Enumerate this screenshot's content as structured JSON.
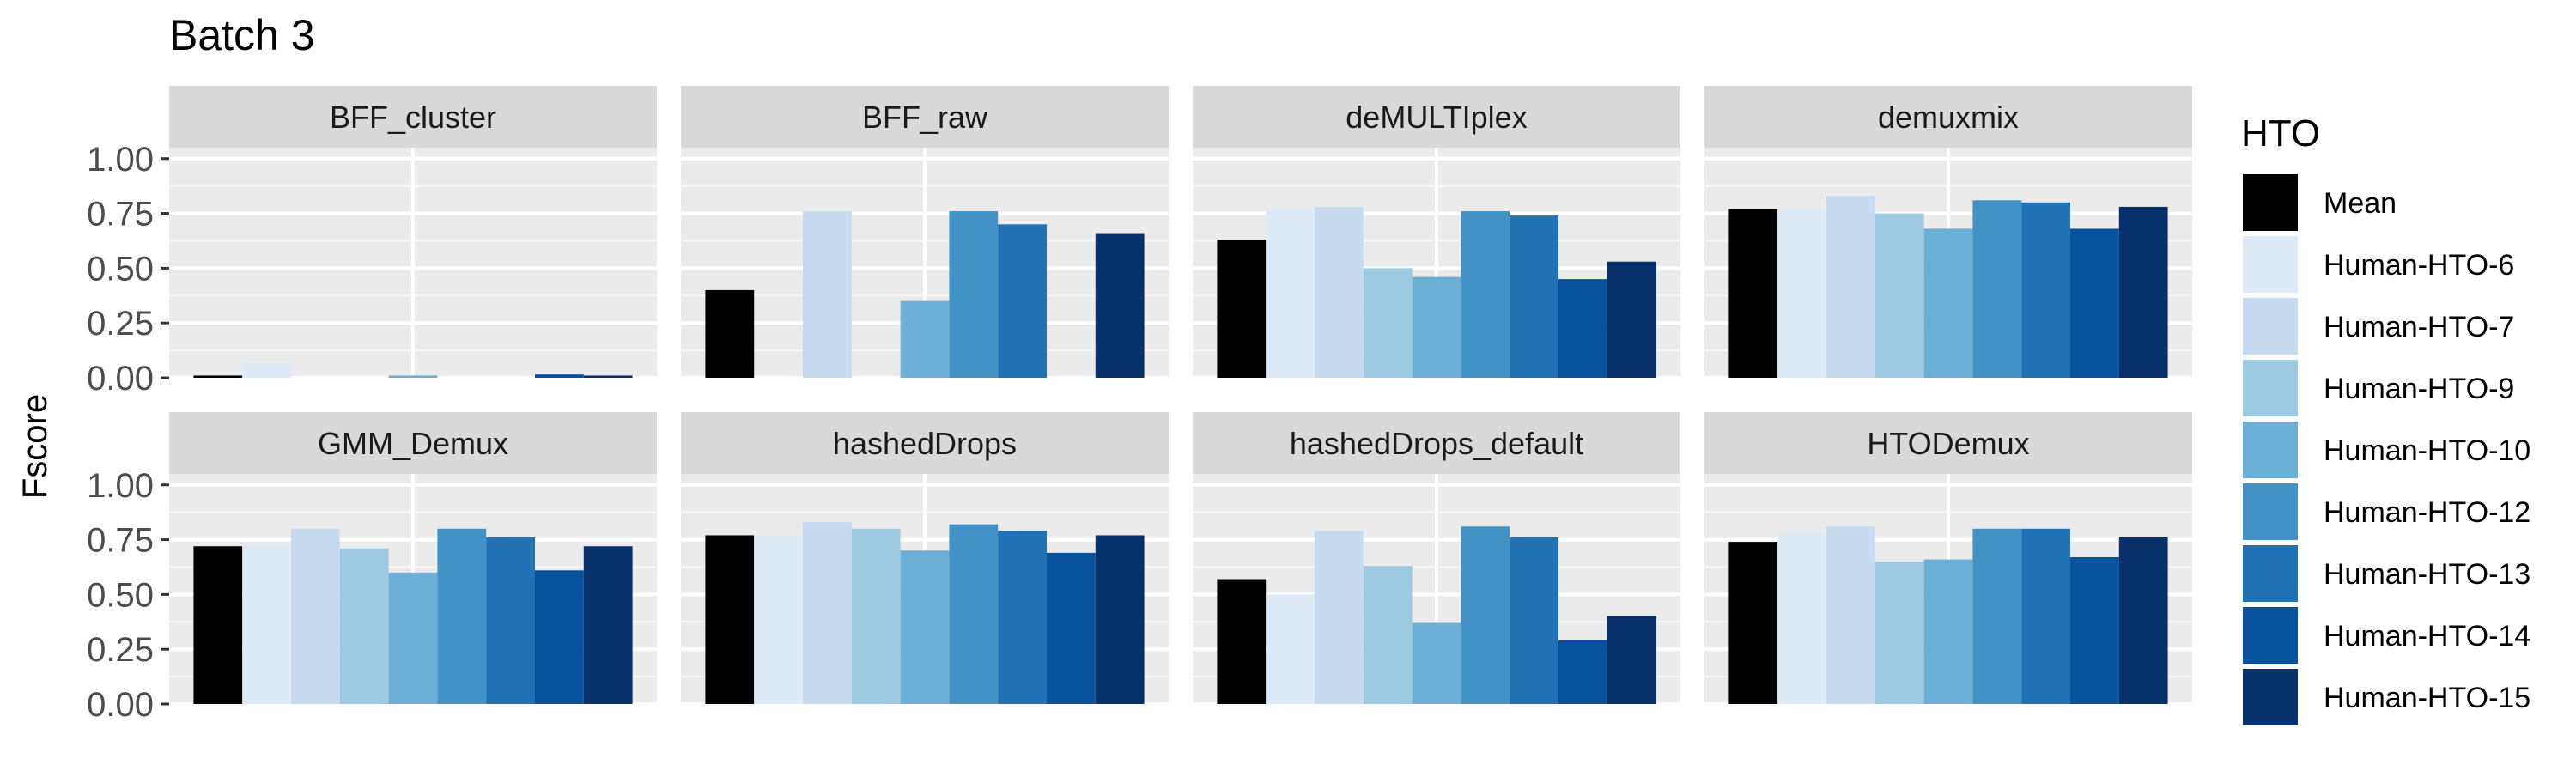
{
  "chart_data": {
    "type": "bar",
    "title": "Batch 3",
    "ylabel": "Fscore",
    "xlabel": "",
    "ylim": [
      0,
      1.05
    ],
    "yticks": [
      0,
      0.25,
      0.5,
      0.75,
      1.0
    ],
    "ytick_labels": [
      "0.00",
      "0.25",
      "0.50",
      "0.75",
      "1.00"
    ],
    "grid": true,
    "legend": {
      "title": "HTO",
      "placement": "right",
      "entries": [
        "Mean",
        "Human-HTO-6",
        "Human-HTO-7",
        "Human-HTO-9",
        "Human-HTO-10",
        "Human-HTO-12",
        "Human-HTO-13",
        "Human-HTO-14",
        "Human-HTO-15"
      ]
    },
    "colors": [
      "#000000",
      "#deebf7",
      "#c6dbef",
      "#9ecae1",
      "#6baed6",
      "#4292c6",
      "#2171b5",
      "#08519c",
      "#08306b"
    ],
    "categories": [
      "Mean",
      "Human-HTO-6",
      "Human-HTO-7",
      "Human-HTO-9",
      "Human-HTO-10",
      "Human-HTO-12",
      "Human-HTO-13",
      "Human-HTO-14",
      "Human-HTO-15"
    ],
    "panels": [
      {
        "name": "BFF_cluster",
        "values": [
          0.01,
          0.07,
          0.0,
          0.0,
          0.01,
          0.0,
          0.0,
          0.015,
          0.01
        ]
      },
      {
        "name": "BFF_raw",
        "values": [
          0.4,
          0.0,
          0.76,
          0.0,
          0.35,
          0.76,
          0.7,
          0.0,
          0.66
        ]
      },
      {
        "name": "deMULTIplex",
        "values": [
          0.63,
          0.77,
          0.78,
          0.5,
          0.46,
          0.76,
          0.74,
          0.45,
          0.53
        ]
      },
      {
        "name": "demuxmix",
        "values": [
          0.77,
          0.77,
          0.83,
          0.75,
          0.68,
          0.81,
          0.8,
          0.68,
          0.78
        ]
      },
      {
        "name": "GMM_Demux",
        "values": [
          0.72,
          0.73,
          0.8,
          0.71,
          0.6,
          0.8,
          0.76,
          0.61,
          0.72
        ]
      },
      {
        "name": "hashedDrops",
        "values": [
          0.77,
          0.77,
          0.83,
          0.8,
          0.7,
          0.82,
          0.79,
          0.69,
          0.77
        ]
      },
      {
        "name": "hashedDrops_default",
        "values": [
          0.57,
          0.5,
          0.79,
          0.63,
          0.37,
          0.81,
          0.76,
          0.29,
          0.4
        ]
      },
      {
        "name": "HTODemux",
        "values": [
          0.74,
          0.78,
          0.81,
          0.65,
          0.66,
          0.8,
          0.8,
          0.67,
          0.76
        ]
      }
    ]
  }
}
